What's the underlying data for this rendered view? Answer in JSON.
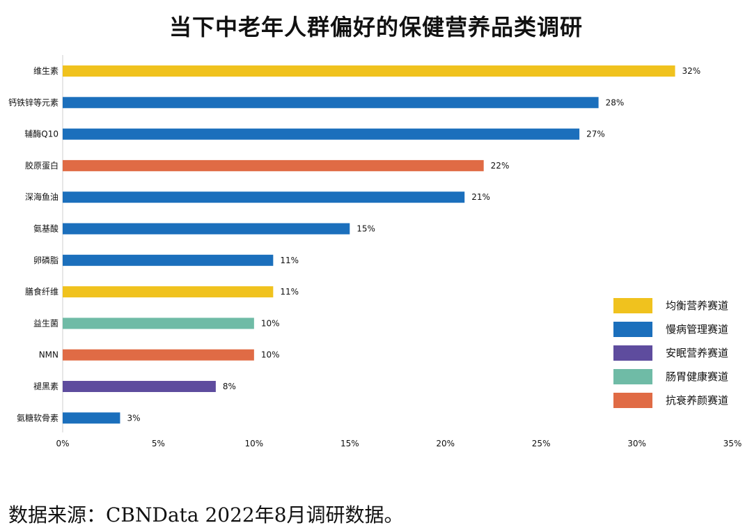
{
  "title": "当下中老年人群偏好的保健营养品类调研",
  "source": "数据来源：CBNData 2022年8月调研数据。",
  "colors": {
    "均衡营养赛道": "#F0C21E",
    "慢病管理赛道": "#1B6FBC",
    "安眠营养赛道": "#5E4C9E",
    "肠胃健康赛道": "#6FBBA6",
    "抗衰养颜赛道": "#E06B45"
  },
  "chart_data": {
    "type": "bar",
    "orientation": "horizontal",
    "categories": [
      "维生素",
      "钙铁锌等元素",
      "辅酶Q10",
      "胶原蛋白",
      "深海鱼油",
      "氨基酸",
      "卵磷脂",
      "膳食纤维",
      "益生菌",
      "NMN",
      "褪黑素",
      "氨糖软骨素"
    ],
    "values": [
      32,
      28,
      27,
      22,
      21,
      15,
      11,
      11,
      10,
      10,
      8,
      3
    ],
    "value_labels": [
      "32%",
      "28%",
      "27%",
      "22%",
      "21%",
      "15%",
      "11%",
      "11%",
      "10%",
      "10%",
      "8%",
      "3%"
    ],
    "groups": [
      "均衡营养赛道",
      "慢病管理赛道",
      "慢病管理赛道",
      "抗衰养颜赛道",
      "慢病管理赛道",
      "慢病管理赛道",
      "慢病管理赛道",
      "均衡营养赛道",
      "肠胃健康赛道",
      "抗衰养颜赛道",
      "安眠营养赛道",
      "慢病管理赛道"
    ],
    "xlim": [
      0,
      35
    ],
    "xticks": [
      0,
      5,
      10,
      15,
      20,
      25,
      30,
      35
    ],
    "xtick_labels": [
      "0%",
      "5%",
      "10%",
      "15%",
      "20%",
      "25%",
      "30%",
      "35%"
    ],
    "grid": false,
    "legend_position": "right",
    "legend": [
      "均衡营养赛道",
      "慢病管理赛道",
      "安眠营养赛道",
      "肠胃健康赛道",
      "抗衰养颜赛道"
    ]
  }
}
